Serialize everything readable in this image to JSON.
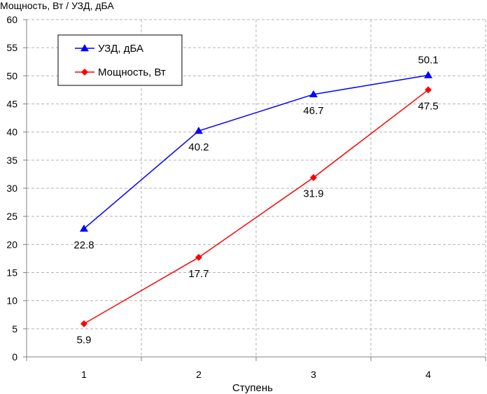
{
  "chart_data": {
    "type": "line",
    "title": "",
    "ylabel": "Мощность, Вт / УЗД, дБА",
    "xlabel": "Ступень",
    "categories": [
      "1",
      "2",
      "3",
      "4"
    ],
    "ylim": [
      0,
      60
    ],
    "yticks": [
      "0",
      "5",
      "10",
      "15",
      "20",
      "25",
      "30",
      "35",
      "40",
      "45",
      "50",
      "55",
      "60"
    ],
    "grid": true,
    "legend_position": "top-left",
    "series": [
      {
        "name": "УЗД, дБА",
        "values": [
          22.8,
          40.2,
          46.7,
          50.1
        ],
        "labels": [
          "22.8",
          "40.2",
          "46.7",
          "50.1"
        ],
        "color": "#0000ff",
        "marker": "triangle"
      },
      {
        "name": "Мощность, Вт",
        "values": [
          5.9,
          17.7,
          31.9,
          47.5
        ],
        "labels": [
          "5.9",
          "17.7",
          "31.9",
          "47.5"
        ],
        "color": "#ff0000",
        "marker": "diamond"
      }
    ]
  }
}
